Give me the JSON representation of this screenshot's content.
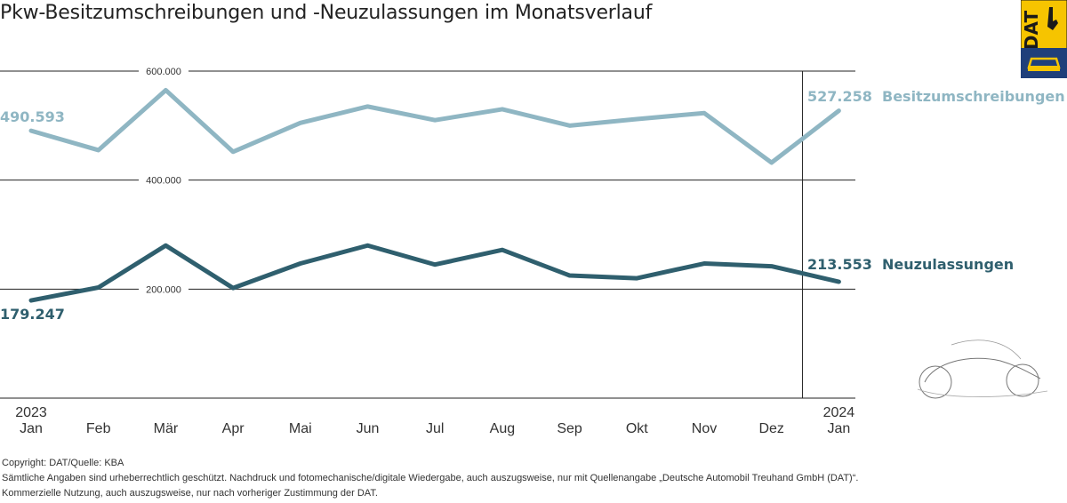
{
  "title": "Pkw-Besitzumschreibungen und -Neuzulassungen im Monatsverlauf",
  "logo": {
    "text": "DAT"
  },
  "colors": {
    "besitz": "#8fb6c3",
    "neu": "#2f5f6e",
    "grid": "#222222",
    "logo_bg": "#f6c400"
  },
  "chart_data": {
    "type": "line",
    "categories": [
      "Jan",
      "Feb",
      "Mär",
      "Apr",
      "Mai",
      "Jun",
      "Jul",
      "Aug",
      "Sep",
      "Okt",
      "Nov",
      "Dez",
      "Jan"
    ],
    "year_labels": [
      "2023",
      "2024"
    ],
    "y_ticks": [
      "200.000",
      "400.000",
      "600.000"
    ],
    "ylim": [
      0,
      600000
    ],
    "grid": true,
    "series": [
      {
        "name": "Besitzumschreibungen",
        "values": [
          490593,
          455000,
          565000,
          452000,
          505000,
          535000,
          510000,
          530000,
          500000,
          512000,
          523000,
          432000,
          527258
        ],
        "start_label": "490.593",
        "end_label": "527.258"
      },
      {
        "name": "Neuzulassungen",
        "values": [
          179247,
          203000,
          280000,
          202000,
          247000,
          280000,
          245000,
          272000,
          225000,
          220000,
          247000,
          242000,
          213553
        ],
        "start_label": "179.247",
        "end_label": "213.553"
      }
    ]
  },
  "footer": {
    "line1": "Copyright: DAT/Quelle: KBA",
    "line2": "Sämtliche Angaben sind urheberrechtlich geschützt. Nachdruck und fotomechanische/digitale Wiedergabe, auch auszugsweise, nur mit Quellenangabe „Deutsche Automobil Treuhand GmbH (DAT)“.",
    "line3": "Kommerzielle Nutzung, auch auszugsweise, nur nach vorheriger Zustimmung der DAT."
  }
}
